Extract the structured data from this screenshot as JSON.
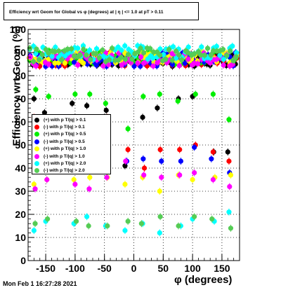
{
  "title": "Efficiency wrt Geom for Global vs φ (degrees) at | η | <= 1.0 at pT > 0.11",
  "ylabel": "Efficiency wrt Geom (%)",
  "xlabel": "φ (degrees)",
  "timestamp": "Mon Feb  1 16:27:28 2021",
  "chart_data": {
    "type": "scatter",
    "title": "Efficiency wrt Geom for Global vs φ (degrees) at | η | <= 1.0 at pT > 0.11",
    "xlabel": "φ (degrees)",
    "ylabel": "Efficiency wrt Geom (%)",
    "xlim": [
      -180,
      180
    ],
    "ylim": [
      0,
      100
    ],
    "x_ticks": [
      -150,
      -100,
      -50,
      0,
      50,
      100,
      150
    ],
    "y_ticks": [
      0,
      10,
      20,
      30,
      40,
      50,
      60,
      70,
      80,
      90,
      100
    ],
    "grid": true,
    "legend_position": "left-middle",
    "series": [
      {
        "name": "(+) with p T/|q| > 0.1",
        "color": "#000000",
        "baseline": 87,
        "spread": 3
      },
      {
        "name": "(-) with p T/|q| > 0.1",
        "color": "#ff0000",
        "baseline": 87,
        "spread": 3
      },
      {
        "name": "(+) with p T/|q| > 0.5",
        "color": "#00ee00",
        "baseline": 88,
        "spread": 3
      },
      {
        "name": "(-) with p T/|q| > 0.5",
        "color": "#0000ff",
        "baseline": 87,
        "spread": 3
      },
      {
        "name": "(+) with p T/|q| > 1.0",
        "color": "#ffff00",
        "baseline": 88,
        "spread": 3
      },
      {
        "name": "(-) with p T/|q| > 1.0",
        "color": "#ff00ff",
        "baseline": 87,
        "spread": 3
      },
      {
        "name": "(+) with p T/|q| > 2.0",
        "color": "#00ffff",
        "baseline": 90,
        "spread": 3
      },
      {
        "name": "(-) with p T/|q| > 2.0",
        "color": "#55cc55",
        "baseline": 89,
        "spread": 3
      }
    ],
    "low_clusters": [
      {
        "color": "#000000",
        "points": [
          [
            -170,
            70
          ],
          [
            -152,
            64
          ],
          [
            -105,
            68
          ],
          [
            -80,
            67
          ],
          [
            -47,
            65
          ],
          [
            -15,
            41
          ],
          [
            15,
            62
          ],
          [
            40,
            66
          ],
          [
            76,
            70
          ],
          [
            100,
            71
          ],
          [
            136,
            47
          ],
          [
            160,
            47
          ]
        ]
      },
      {
        "color": "#ff0000",
        "points": [
          [
            -170,
            62
          ],
          [
            -150,
            61
          ],
          [
            -103,
            61
          ],
          [
            -78,
            61
          ],
          [
            -45,
            62
          ],
          [
            -10,
            48
          ],
          [
            18,
            40
          ],
          [
            45,
            48
          ],
          [
            78,
            48
          ],
          [
            105,
            50
          ],
          [
            135,
            47
          ],
          [
            162,
            43
          ]
        ]
      },
      {
        "color": "#00ee00",
        "points": [
          [
            -167,
            74
          ],
          [
            -145,
            71
          ],
          [
            -100,
            72
          ],
          [
            -75,
            72
          ],
          [
            -48,
            68
          ],
          [
            -10,
            57
          ],
          [
            16,
            71
          ],
          [
            44,
            72
          ],
          [
            75,
            69
          ],
          [
            105,
            72
          ],
          [
            135,
            72
          ],
          [
            162,
            61
          ]
        ]
      },
      {
        "color": "#0000ff",
        "points": [
          [
            -168,
            60
          ],
          [
            -148,
            57
          ],
          [
            -100,
            57
          ],
          [
            -80,
            57
          ],
          [
            -46,
            57
          ],
          [
            -12,
            43
          ],
          [
            16,
            44
          ],
          [
            47,
            43
          ],
          [
            80,
            43
          ],
          [
            103,
            49
          ],
          [
            132,
            44
          ],
          [
            163,
            38
          ]
        ]
      },
      {
        "color": "#ffff00",
        "points": [
          [
            -170,
            33
          ],
          [
            -148,
            35
          ],
          [
            -102,
            35
          ],
          [
            -75,
            36
          ],
          [
            -45,
            36
          ],
          [
            -15,
            33
          ],
          [
            15,
            36
          ],
          [
            44,
            30
          ],
          [
            76,
            37
          ],
          [
            100,
            35
          ],
          [
            138,
            36
          ],
          [
            165,
            37
          ]
        ]
      },
      {
        "color": "#ff00ff",
        "points": [
          [
            -168,
            31
          ],
          [
            -148,
            35
          ],
          [
            -100,
            33
          ],
          [
            -76,
            31
          ],
          [
            -46,
            36
          ],
          [
            -14,
            43
          ],
          [
            17,
            37
          ],
          [
            47,
            36
          ],
          [
            78,
            37
          ],
          [
            103,
            38
          ],
          [
            135,
            35
          ],
          [
            163,
            32
          ]
        ]
      },
      {
        "color": "#00ffff",
        "points": [
          [
            -170,
            13
          ],
          [
            -150,
            17
          ],
          [
            -102,
            16
          ],
          [
            -80,
            19
          ],
          [
            -48,
            15
          ],
          [
            -15,
            13
          ],
          [
            15,
            16
          ],
          [
            44,
            12
          ],
          [
            80,
            15
          ],
          [
            100,
            18
          ],
          [
            137,
            17
          ],
          [
            162,
            21
          ]
        ]
      },
      {
        "color": "#55cc55",
        "points": [
          [
            -168,
            16
          ],
          [
            -147,
            18
          ],
          [
            -98,
            17
          ],
          [
            -77,
            15
          ],
          [
            -45,
            15
          ],
          [
            -10,
            17
          ],
          [
            13,
            16
          ],
          [
            45,
            19
          ],
          [
            76,
            15
          ],
          [
            103,
            19
          ],
          [
            133,
            18
          ],
          [
            165,
            14
          ]
        ]
      }
    ]
  }
}
